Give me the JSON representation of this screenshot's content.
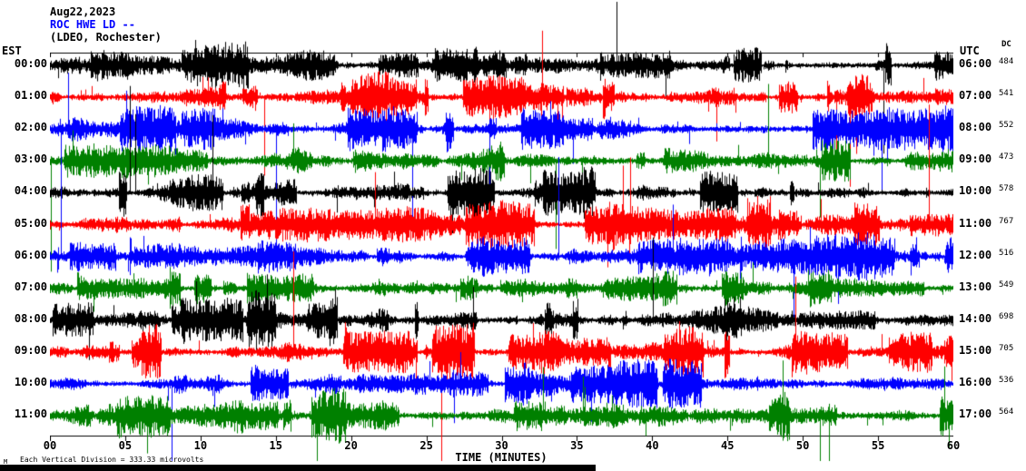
{
  "header": {
    "date": "Aug22,2023",
    "station": "ROC HWE LD --",
    "location": "(LDEO, Rochester)"
  },
  "axes": {
    "left_label": "EST",
    "right_label": "UTC",
    "dc_label": "DC",
    "x_axis_label": "TIME (MINUTES)",
    "x_ticks": [
      "00",
      "05",
      "10",
      "15",
      "20",
      "25",
      "30",
      "35",
      "40",
      "45",
      "50",
      "55",
      "60"
    ]
  },
  "footnote": "Each Vertical Division =  333.33 microvolts",
  "footnote_marker": "M",
  "chart_data": {
    "type": "line",
    "title": "ROC HWE LD -- (LDEO, Rochester) helicorder, Aug22,2023",
    "xlabel": "TIME (MINUTES)",
    "x_range_minutes": [
      0,
      60
    ],
    "minutes_per_row": 60,
    "vertical_division_microvolts": 333.33,
    "rows": [
      {
        "est": "00:00",
        "utc": "06:00",
        "dc": "484",
        "color": "black",
        "amp": 1.05
      },
      {
        "est": "01:00",
        "utc": "07:00",
        "dc": "541",
        "color": "red",
        "amp": 1.05
      },
      {
        "est": "02:00",
        "utc": "08:00",
        "dc": "552",
        "color": "blue",
        "amp": 1.0
      },
      {
        "est": "03:00",
        "utc": "09:00",
        "dc": "473",
        "color": "green",
        "amp": 0.9
      },
      {
        "est": "04:00",
        "utc": "10:00",
        "dc": "578",
        "color": "black",
        "amp": 1.25
      },
      {
        "est": "05:00",
        "utc": "11:00",
        "dc": "767",
        "color": "red",
        "amp": 1.2
      },
      {
        "est": "06:00",
        "utc": "12:00",
        "dc": "516",
        "color": "blue",
        "amp": 1.0
      },
      {
        "est": "07:00",
        "utc": "13:00",
        "dc": "549",
        "color": "green",
        "amp": 0.95
      },
      {
        "est": "08:00",
        "utc": "14:00",
        "dc": "698",
        "color": "black",
        "amp": 1.3
      },
      {
        "est": "09:00",
        "utc": "15:00",
        "dc": "705",
        "color": "red",
        "amp": 1.2
      },
      {
        "est": "10:00",
        "utc": "16:00",
        "dc": "536",
        "color": "blue",
        "amp": 1.05
      },
      {
        "est": "11:00",
        "utc": "17:00",
        "dc": "564",
        "color": "green",
        "amp": 1.1
      }
    ],
    "colors": {
      "black": "#000000",
      "red": "#ff0000",
      "blue": "#0000ff",
      "green": "#008000"
    }
  }
}
